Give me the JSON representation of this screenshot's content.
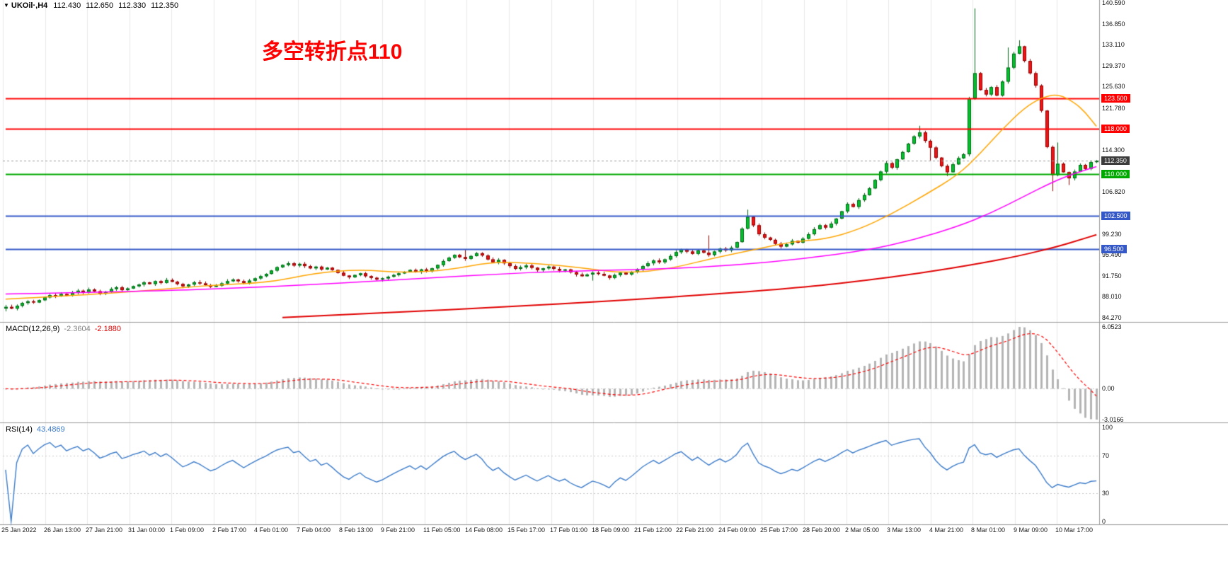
{
  "header": {
    "dropdown_icon": "▼",
    "symbol": "UKOil·,H4",
    "open": "112.430",
    "high": "112.650",
    "low": "112.330",
    "close": "112.350"
  },
  "annotation": {
    "text": "多空转折点110"
  },
  "chart_data": {
    "type": "candlestick",
    "symbol": "UKOil",
    "period": "H4",
    "price_axis": {
      "max": 140.59,
      "min": 84.27,
      "ticks": [
        {
          "v": 140.59,
          "label": "140.590"
        },
        {
          "v": 136.85,
          "label": "136.850"
        },
        {
          "v": 133.11,
          "label": "133.110"
        },
        {
          "v": 129.37,
          "label": "129.370"
        },
        {
          "v": 125.63,
          "label": "125.630"
        },
        {
          "v": 121.78,
          "label": "121.780"
        },
        {
          "v": 114.3,
          "label": "114.300"
        },
        {
          "v": 106.82,
          "label": "106.820"
        },
        {
          "v": 99.23,
          "label": "99.230"
        },
        {
          "v": 95.49,
          "label": "95.490"
        },
        {
          "v": 91.75,
          "label": "91.750"
        },
        {
          "v": 88.01,
          "label": "88.010"
        },
        {
          "v": 84.27,
          "label": "84.270"
        }
      ]
    },
    "x_labels": [
      "25 Jan 2022",
      "26 Jan 13:00",
      "27 Jan 21:00",
      "31 Jan 00:00",
      "1 Feb 09:00",
      "2 Feb 17:00",
      "4 Feb 01:00",
      "7 Feb 04:00",
      "8 Feb 13:00",
      "9 Feb 21:00",
      "11 Feb 05:00",
      "14 Feb 08:00",
      "15 Feb 17:00",
      "17 Feb 01:00",
      "18 Feb 09:00",
      "21 Feb 12:00",
      "22 Feb 21:00",
      "24 Feb 09:00",
      "25 Feb 17:00",
      "28 Feb 20:00",
      "2 Mar 05:00",
      "3 Mar 13:00",
      "4 Mar 21:00",
      "8 Mar 01:00",
      "9 Mar 09:00",
      "10 Mar 17:00"
    ],
    "hlines": [
      {
        "value": 123.5,
        "label": "123.500",
        "color": "#FF0000"
      },
      {
        "value": 118.0,
        "label": "118.000",
        "color": "#FF0000"
      },
      {
        "value": 110.0,
        "label": "110.000",
        "color": "#00A800"
      },
      {
        "value": 102.5,
        "label": "102.500",
        "color": "#3558C8"
      },
      {
        "value": 96.5,
        "label": "96.500",
        "color": "#3558C8"
      }
    ],
    "current_price": {
      "value": 112.35,
      "label": "112.350"
    },
    "closes": [
      86.2,
      85.9,
      86.4,
      86.9,
      87.2,
      87.0,
      87.4,
      87.9,
      88.3,
      88.1,
      88.5,
      88.2,
      88.7,
      89.1,
      88.8,
      89.3,
      89.0,
      88.6,
      88.9,
      89.4,
      89.7,
      89.2,
      89.5,
      89.9,
      90.2,
      90.6,
      90.3,
      90.8,
      90.5,
      91.0,
      90.7,
      90.3,
      89.9,
      90.2,
      90.6,
      90.4,
      90.1,
      89.8,
      90.0,
      90.4,
      90.8,
      91.1,
      90.8,
      90.5,
      90.9,
      91.3,
      91.7,
      92.1,
      92.7,
      93.3,
      93.7,
      94.0,
      93.6,
      93.9,
      93.5,
      93.1,
      93.4,
      92.9,
      93.2,
      92.8,
      92.3,
      91.8,
      91.5,
      91.9,
      92.2,
      91.7,
      91.4,
      91.1,
      91.3,
      91.6,
      91.9,
      92.2,
      92.5,
      92.8,
      92.5,
      92.9,
      92.6,
      93.1,
      93.7,
      94.4,
      95.0,
      95.5,
      95.1,
      94.8,
      95.3,
      95.8,
      95.4,
      94.7,
      94.2,
      94.6,
      94.0,
      93.5,
      93.0,
      93.3,
      93.6,
      93.2,
      92.8,
      93.1,
      93.4,
      93.0,
      92.7,
      92.9,
      92.4,
      92.0,
      91.7,
      92.0,
      92.3,
      92.1,
      91.8,
      91.4,
      91.9,
      92.3,
      92.0,
      92.4,
      92.9,
      93.5,
      94.0,
      94.5,
      94.2,
      94.7,
      95.3,
      96.0,
      96.5,
      96.1,
      95.7,
      96.3,
      95.9,
      95.5,
      96.1,
      96.6,
      96.3,
      96.8,
      97.8,
      100.2,
      102.3,
      100.8,
      99.2,
      98.6,
      98.2,
      97.5,
      97.0,
      97.4,
      98.0,
      97.7,
      98.4,
      99.2,
      100.1,
      100.8,
      100.4,
      101.1,
      102.0,
      103.3,
      104.6,
      104.1,
      105.3,
      106.2,
      107.4,
      108.9,
      110.4,
      111.9,
      111.1,
      112.6,
      113.9,
      115.4,
      116.7,
      117.4,
      115.9,
      114.7,
      112.9,
      111.4,
      110.3,
      111.7,
      112.8,
      113.5,
      123.5,
      128.0,
      125.0,
      124.2,
      125.5,
      124.0,
      126.5,
      129.0,
      131.5,
      132.8,
      130.2,
      128.0,
      125.8,
      121.3,
      114.8,
      109.8,
      111.8,
      110.3,
      109.2,
      110.4,
      111.6,
      110.9,
      112.1,
      112.35
    ],
    "wick_high": {
      "1": 86.6,
      "83": 96.4,
      "127": 99.0,
      "134": 103.6,
      "165": 118.6,
      "175": 139.59,
      "181": 132.6,
      "183": 133.9,
      "190": 115.6
    },
    "wick_low": {
      "0": 85.4,
      "106": 90.9,
      "167": 112.4,
      "170": 109.6,
      "189": 106.9,
      "192": 108.0
    },
    "ma_lines": [
      {
        "name": "ma-fast-orange",
        "color": "#FFA500",
        "width": 1.5,
        "points": [
          [
            0,
            87.6
          ],
          [
            12,
            88.2
          ],
          [
            24,
            89.0
          ],
          [
            36,
            90.0
          ],
          [
            48,
            90.6
          ],
          [
            56,
            92.3
          ],
          [
            64,
            92.9
          ],
          [
            72,
            92.3
          ],
          [
            80,
            92.8
          ],
          [
            88,
            94.3
          ],
          [
            96,
            94.0
          ],
          [
            104,
            93.2
          ],
          [
            112,
            92.2
          ],
          [
            120,
            93.0
          ],
          [
            128,
            95.0
          ],
          [
            136,
            96.6
          ],
          [
            142,
            97.9
          ],
          [
            148,
            98.3
          ],
          [
            154,
            100.0
          ],
          [
            160,
            102.8
          ],
          [
            166,
            106.2
          ],
          [
            172,
            109.8
          ],
          [
            176,
            113.6
          ],
          [
            180,
            118.0
          ],
          [
            184,
            121.8
          ],
          [
            187,
            123.6
          ],
          [
            190,
            124.3
          ],
          [
            193,
            122.8
          ],
          [
            195,
            121.0
          ],
          [
            197,
            118.5
          ]
        ]
      },
      {
        "name": "ma-mid-magenta",
        "color": "#FF00FF",
        "width": 1.5,
        "points": [
          [
            0,
            88.5
          ],
          [
            24,
            88.9
          ],
          [
            48,
            89.8
          ],
          [
            72,
            91.1
          ],
          [
            96,
            92.5
          ],
          [
            120,
            93.0
          ],
          [
            132,
            93.7
          ],
          [
            144,
            94.8
          ],
          [
            156,
            96.4
          ],
          [
            164,
            98.2
          ],
          [
            172,
            100.6
          ],
          [
            178,
            103.0
          ],
          [
            184,
            106.0
          ],
          [
            189,
            108.5
          ],
          [
            193,
            110.1
          ],
          [
            197,
            111.3
          ]
        ]
      },
      {
        "name": "ma-slow-red",
        "color": "#E00000",
        "width": 2,
        "points": [
          [
            50,
            84.3
          ],
          [
            70,
            85.2
          ],
          [
            90,
            86.2
          ],
          [
            110,
            87.3
          ],
          [
            130,
            88.6
          ],
          [
            145,
            89.8
          ],
          [
            155,
            90.9
          ],
          [
            165,
            92.2
          ],
          [
            175,
            93.8
          ],
          [
            183,
            95.3
          ],
          [
            190,
            97.0
          ],
          [
            194,
            98.2
          ],
          [
            197,
            99.1
          ]
        ]
      }
    ],
    "macd": {
      "name": "MACD(12,26,9)",
      "main_value": "-2.3604",
      "signal_value": "-2.1880",
      "axis": [
        {
          "v": 6.0523,
          "label": "6.0523"
        },
        {
          "v": 0,
          "label": "0.00"
        },
        {
          "v": -3.0166,
          "label": "-3.0166"
        }
      ]
    },
    "rsi": {
      "name": "RSI(14)",
      "value": "43.4869",
      "period": 14,
      "levels": [
        70,
        30
      ],
      "axis": [
        {
          "v": 100,
          "label": "100"
        },
        {
          "v": 70,
          "label": "70"
        },
        {
          "v": 30,
          "label": "30"
        },
        {
          "v": 0,
          "label": "0"
        }
      ]
    },
    "colors": {
      "up": "#00C42C",
      "up_border": "#006414",
      "down": "#F01414",
      "down_border": "#8E0000",
      "grid": "#E8E8E8",
      "panel_border": "#9A9A9A",
      "current_line": "#9A9A9A",
      "current_badge": "#3C3C3C",
      "macd_hist": "#B4B4B4",
      "macd_signal": "#FF0000",
      "rsi": "#3B7BC8",
      "level_dash": "#C8C8C8",
      "annotation": "#FF0000"
    }
  }
}
